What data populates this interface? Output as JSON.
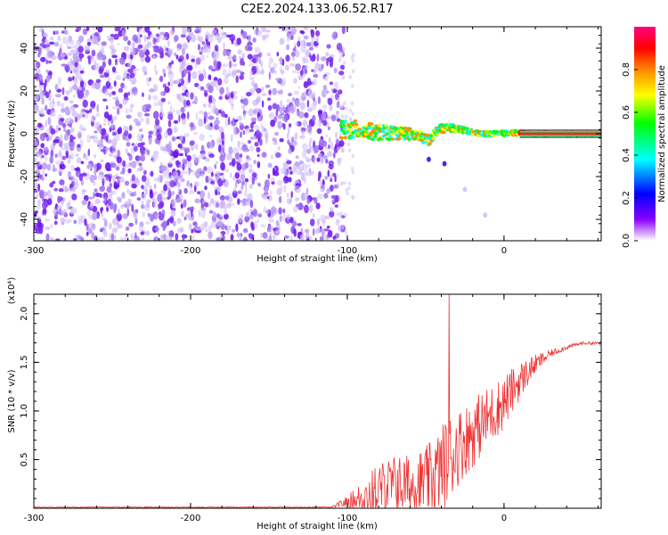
{
  "title": "C2E2.2024.133.06.52.R17",
  "chart_data": [
    {
      "type": "heatmap",
      "name": "spectrogram",
      "xlabel": "Height of straight line (km)",
      "ylabel": "Frequency (Hz)",
      "xlim": [
        -300,
        62
      ],
      "ylim": [
        -50,
        50
      ],
      "xticks": [
        -300,
        -200,
        -100,
        0
      ],
      "yticks": [
        -40,
        -20,
        0,
        20,
        40
      ],
      "noise_region_x": [
        -300,
        -102
      ],
      "signal_track": {
        "description": "narrow line near 0 Hz",
        "x": [
          -105,
          -95,
          -85,
          -75,
          -65,
          -55,
          -48,
          -42,
          -35,
          -25,
          -15,
          -5,
          5,
          15,
          30,
          62
        ],
        "freq": [
          1.5,
          2.0,
          1.0,
          0.5,
          0.5,
          -1.0,
          -3.0,
          2.0,
          3.0,
          1.5,
          0.0,
          0.0,
          0.5,
          0.0,
          0.0,
          0.0
        ]
      },
      "colorbar": {
        "label": "Normalized spectral amplitude",
        "range": [
          0.0,
          1.0
        ],
        "ticks": [
          "0.0",
          "0.2",
          "0.4",
          "0.6",
          "0.8"
        ],
        "colors": [
          "#ffffff",
          "#8800ff",
          "#0000ff",
          "#00ffff",
          "#00ff00",
          "#ffff00",
          "#ff8800",
          "#ff0000",
          "#ff0080"
        ]
      }
    },
    {
      "type": "line",
      "name": "snr",
      "xlabel": "Height of straight line (km)",
      "ylabel": "SNR (10 * v/v)",
      "scale_label": "(x10⁴)",
      "xlim": [
        -300,
        62
      ],
      "ylim": [
        0,
        2.2
      ],
      "xticks": [
        -300,
        -200,
        -100,
        0
      ],
      "yticks": [
        "0.5",
        "1.0",
        "1.5",
        "2.0"
      ],
      "color": "#ee3333",
      "envelope_x": [
        -300,
        -110,
        -100,
        -90,
        -80,
        -70,
        -60,
        -50,
        -45,
        -40,
        -35,
        -30,
        -20,
        -10,
        0,
        10,
        20,
        30,
        40,
        50,
        62
      ],
      "envelope_base": [
        0.01,
        0.01,
        0.08,
        0.15,
        0.25,
        0.3,
        0.3,
        0.35,
        0.4,
        0.5,
        0.6,
        0.7,
        0.85,
        1.0,
        1.15,
        1.35,
        1.5,
        1.6,
        1.66,
        1.7,
        1.7
      ],
      "envelope_amp": [
        0.01,
        0.01,
        0.08,
        0.22,
        0.35,
        0.4,
        0.4,
        0.45,
        0.5,
        0.55,
        0.6,
        0.5,
        0.45,
        0.4,
        0.35,
        0.25,
        0.12,
        0.05,
        0.03,
        0.02,
        0.02
      ],
      "peak": {
        "x": -35,
        "y": 2.2
      }
    }
  ]
}
